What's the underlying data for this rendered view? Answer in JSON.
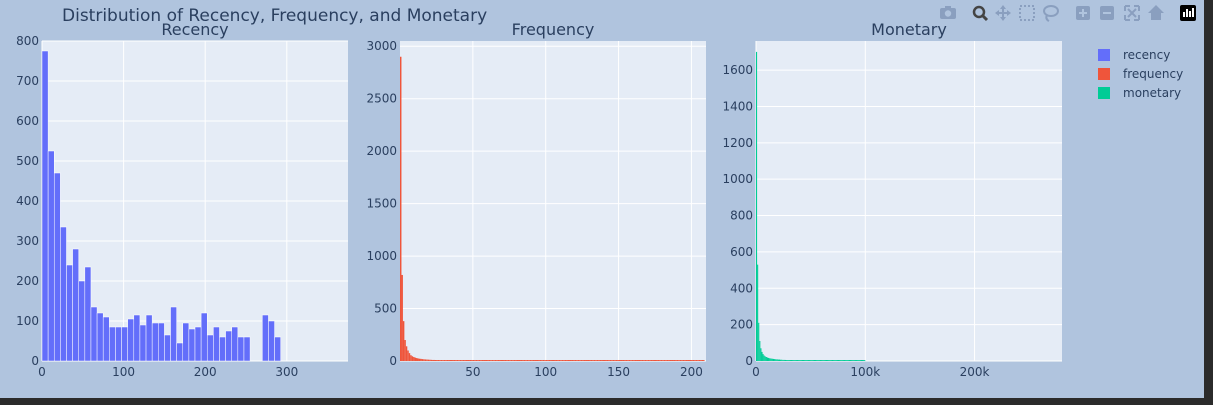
{
  "figure": {
    "title": "Distribution of Recency, Frequency, and Monetary",
    "paper_bg": "#b0c4de",
    "plot_bg": "#e5ecf6"
  },
  "modebar": {
    "icons": [
      "camera-icon",
      "zoom-icon",
      "pan-icon",
      "box-select-icon",
      "lasso-select-icon",
      "zoom-in-icon",
      "zoom-out-icon",
      "autoscale-icon",
      "reset-axes-icon",
      "plotly-logo-icon"
    ]
  },
  "legend": {
    "placement": "top-right",
    "items": [
      {
        "name": "recency",
        "color": "#636efa"
      },
      {
        "name": "frequency",
        "color": "#ef553b"
      },
      {
        "name": "monetary",
        "color": "#00cc96"
      }
    ]
  },
  "chart_data": [
    {
      "type": "bar",
      "title": "Recency",
      "series_name": "recency",
      "color": "#636efa",
      "xlim": [
        0,
        375
      ],
      "ylim": [
        0,
        800
      ],
      "x_ticks": [
        {
          "v": 0,
          "label": "0"
        },
        {
          "v": 100,
          "label": "100"
        },
        {
          "v": 200,
          "label": "200"
        },
        {
          "v": 300,
          "label": "300"
        }
      ],
      "y_ticks": [
        {
          "v": 0,
          "label": "0"
        },
        {
          "v": 100,
          "label": "100"
        },
        {
          "v": 200,
          "label": "200"
        },
        {
          "v": 300,
          "label": "300"
        },
        {
          "v": 400,
          "label": "400"
        },
        {
          "v": 500,
          "label": "500"
        },
        {
          "v": 600,
          "label": "600"
        },
        {
          "v": 700,
          "label": "700"
        },
        {
          "v": 800,
          "label": "800"
        }
      ],
      "bin_width": 7.5,
      "values": [
        775,
        525,
        470,
        335,
        240,
        280,
        200,
        235,
        135,
        120,
        110,
        85,
        85,
        85,
        105,
        115,
        90,
        115,
        95,
        95,
        65,
        135,
        45,
        95,
        80,
        85,
        120,
        65,
        85,
        60,
        75,
        85,
        60,
        60,
        0,
        0,
        115,
        100,
        60
      ]
    },
    {
      "type": "bar",
      "title": "Frequency",
      "series_name": "frequency",
      "color": "#ef553b",
      "xlim": [
        0,
        210
      ],
      "ylim": [
        0,
        3050
      ],
      "x_ticks": [
        {
          "v": 50,
          "label": "50"
        },
        {
          "v": 100,
          "label": "100"
        },
        {
          "v": 150,
          "label": "150"
        },
        {
          "v": 200,
          "label": "200"
        }
      ],
      "y_ticks": [
        {
          "v": 0,
          "label": "0"
        },
        {
          "v": 500,
          "label": "500"
        },
        {
          "v": 1000,
          "label": "1000"
        },
        {
          "v": 1500,
          "label": "1500"
        },
        {
          "v": 2000,
          "label": "2000"
        },
        {
          "v": 2500,
          "label": "2500"
        },
        {
          "v": 3000,
          "label": "3000"
        }
      ],
      "bin_width": 1,
      "values": [
        2900,
        820,
        380,
        200,
        140,
        100,
        75,
        55,
        45,
        38,
        32,
        28,
        24,
        22,
        20,
        18,
        16,
        15,
        14,
        13,
        12,
        11,
        10,
        10,
        9,
        9,
        8,
        8,
        7,
        7,
        7,
        6,
        6,
        6,
        5,
        5,
        5,
        5,
        4,
        4,
        4,
        4,
        4,
        3,
        3,
        3,
        3,
        3,
        3,
        3,
        3,
        2,
        2,
        2,
        2,
        2,
        2,
        2,
        2,
        2,
        2,
        2,
        2,
        2,
        2,
        2,
        2,
        2,
        2,
        2,
        1,
        1,
        1,
        1,
        1,
        1,
        1,
        1,
        1,
        1,
        1,
        1,
        1,
        1,
        1,
        1,
        1,
        1,
        1,
        1,
        1,
        1,
        1,
        1,
        1,
        1,
        1,
        1,
        1,
        1,
        1,
        1,
        1,
        1,
        1,
        1,
        1,
        1,
        1,
        1,
        1,
        1,
        1,
        1,
        1,
        1,
        1,
        1,
        1,
        1,
        1,
        1,
        1,
        1,
        1,
        1,
        1,
        1,
        1,
        1,
        1,
        1,
        1,
        1,
        1,
        1,
        1,
        1,
        1,
        1,
        1,
        1,
        1,
        1,
        1,
        1,
        1,
        1,
        1,
        1,
        1,
        1,
        1,
        1,
        1,
        1,
        1,
        1,
        1,
        1,
        1,
        1,
        1,
        1,
        1,
        1,
        1,
        1,
        1,
        1,
        1,
        1,
        1,
        1,
        1,
        1,
        1,
        1,
        1,
        1,
        1,
        1,
        1,
        1,
        1,
        1,
        1,
        1,
        1,
        1,
        1,
        1,
        1,
        1,
        1,
        1,
        1,
        1,
        1,
        1,
        1,
        1,
        1,
        1,
        1,
        1,
        1,
        1,
        1
      ]
    },
    {
      "type": "bar",
      "title": "Monetary",
      "series_name": "monetary",
      "color": "#00cc96",
      "xlim": [
        0,
        280000
      ],
      "ylim": [
        0,
        1760
      ],
      "x_ticks": [
        {
          "v": 0,
          "label": "0"
        },
        {
          "v": 100000,
          "label": "100k"
        },
        {
          "v": 200000,
          "label": "200k"
        }
      ],
      "y_ticks": [
        {
          "v": 0,
          "label": "0"
        },
        {
          "v": 200,
          "label": "200"
        },
        {
          "v": 400,
          "label": "400"
        },
        {
          "v": 600,
          "label": "600"
        },
        {
          "v": 800,
          "label": "800"
        },
        {
          "v": 1000,
          "label": "1000"
        },
        {
          "v": 1200,
          "label": "1200"
        },
        {
          "v": 1400,
          "label": "1400"
        },
        {
          "v": 1600,
          "label": "1600"
        }
      ],
      "bin_width": 1000,
      "values": [
        1700,
        530,
        210,
        110,
        70,
        50,
        38,
        30,
        25,
        22,
        19,
        17,
        15,
        14,
        13,
        12,
        11,
        10,
        9,
        9,
        8,
        8,
        7,
        7,
        6,
        6,
        6,
        5,
        5,
        5,
        5,
        4,
        4,
        4,
        4,
        4,
        3,
        3,
        3,
        3,
        3,
        3,
        3,
        3,
        2,
        2,
        2,
        2,
        2,
        2,
        2,
        2,
        2,
        2,
        2,
        2,
        2,
        2,
        2,
        2,
        2,
        1,
        1,
        1,
        1,
        1,
        1,
        1,
        1,
        1,
        1,
        1,
        1,
        1,
        1,
        1,
        1,
        1,
        1,
        1,
        1,
        1,
        1,
        1,
        1,
        1,
        1,
        1,
        1,
        1,
        1,
        1,
        1,
        1,
        1,
        1,
        1,
        1,
        1,
        1
      ]
    }
  ]
}
